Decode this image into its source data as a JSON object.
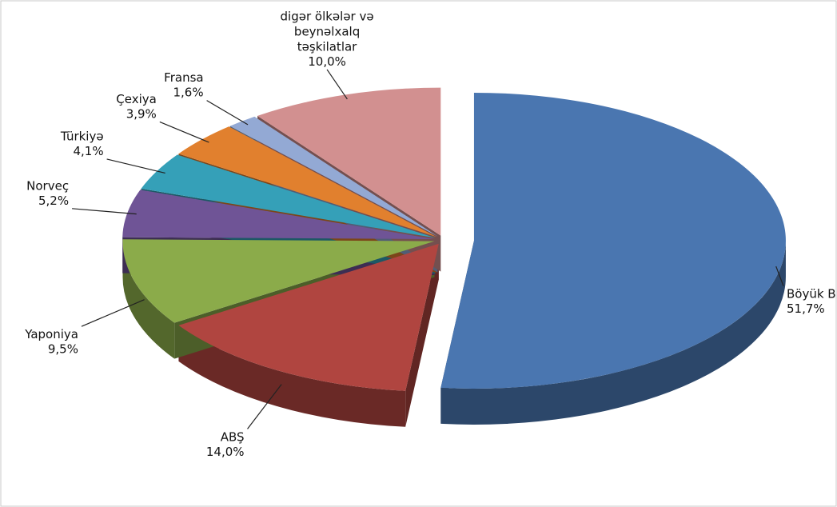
{
  "chart_data": {
    "type": "pie",
    "categories": [
      "Böyük Britaniya",
      "ABŞ",
      "Yaponiya",
      "Norveç",
      "Türkiyə",
      "Çexiya",
      "Fransa",
      "digər ölkələr və beynəlxalq təşkilatlar"
    ],
    "values": [
      51.7,
      14.0,
      9.5,
      5.2,
      4.1,
      3.9,
      1.6,
      10.0
    ],
    "value_labels": [
      "51,7%",
      "14,0%",
      "9,5%",
      "5,2%",
      "4,1%",
      "3,9%",
      "1,6%",
      "10,0%"
    ],
    "colors": [
      "#4a76b0",
      "#b04540",
      "#8bab4a",
      "#6f5496",
      "#35a0b8",
      "#e1802e",
      "#93a9d4",
      "#d29090"
    ]
  }
}
